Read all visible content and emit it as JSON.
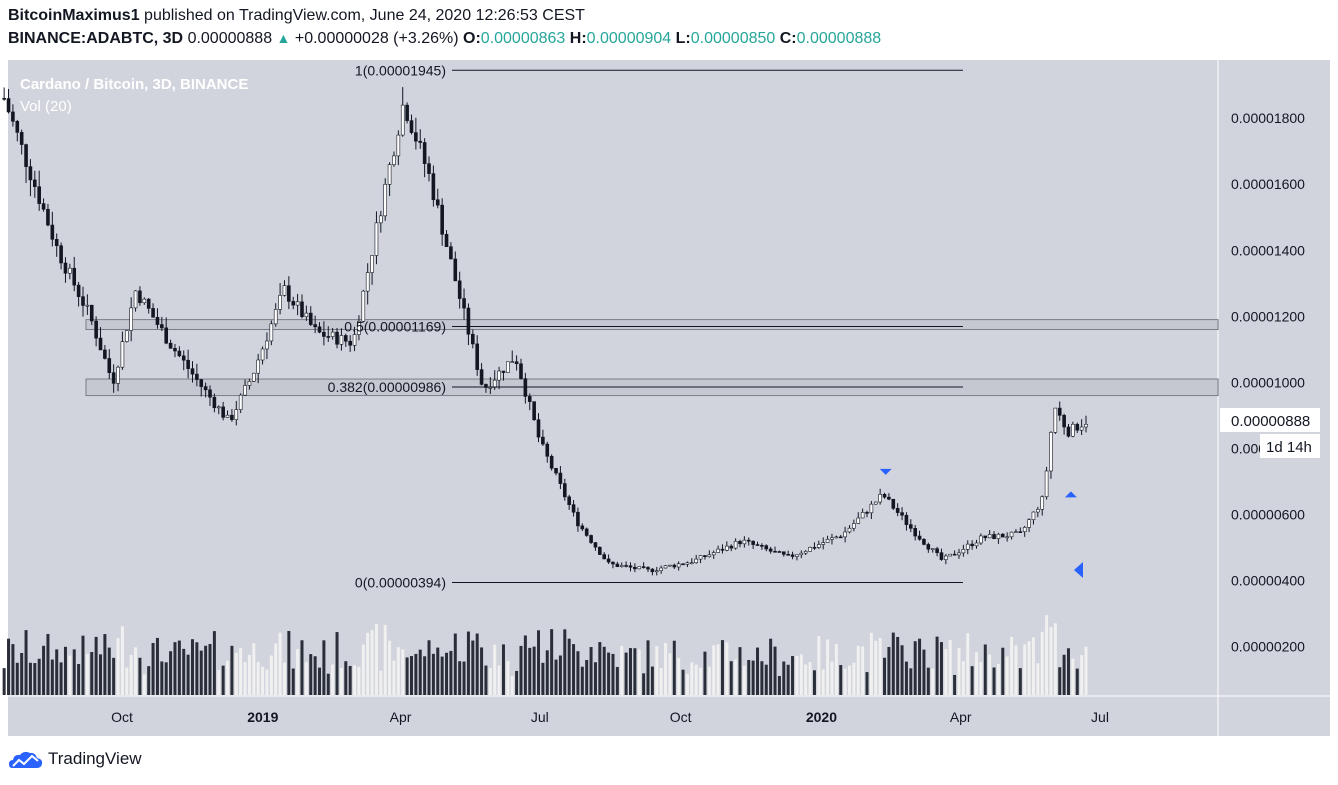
{
  "header": {
    "author": "BitcoinMaximus1",
    "published_text": "published on TradingView.com, June 24, 2020 12:26:53 CEST",
    "symbol": "BINANCE:ADABTC, 3D",
    "last": "0.00000888",
    "change": "+0.00000028 (+3.26%)",
    "o_label": "O:",
    "o_value": "0.00000863",
    "h_label": "H:",
    "h_value": "0.00000904",
    "l_label": "L:",
    "l_value": "0.00000850",
    "c_label": "C:",
    "c_value": "0.00000888"
  },
  "legend": {
    "title": "Cardano / Bitcoin, 3D, BINANCE",
    "volume": "Vol (20)"
  },
  "footer": {
    "brand": "TradingView"
  },
  "chart_data": {
    "type": "candlestick",
    "title": "Cardano / Bitcoin, 3D, BINANCE",
    "y_ticks": [
      "0.00001800",
      "0.00001600",
      "0.00001400",
      "0.00001200",
      "0.00001000",
      "0.00000800",
      "0.00000600",
      "0.00000400",
      "0.00000200"
    ],
    "x_ticks": [
      "Oct",
      "2019",
      "Apr",
      "Jul",
      "Oct",
      "2020",
      "Apr",
      "Jul"
    ],
    "last_price": "0.00000888",
    "countdown": "1d 14h",
    "fib_levels": [
      {
        "label": "1(0.00001945)",
        "value": 1.945e-05
      },
      {
        "label": "0.5(0.00001169)",
        "value": 1.169e-05
      },
      {
        "label": "0.382(0.00000986)",
        "value": 9.86e-06
      },
      {
        "label": "0(0.00000394)",
        "value": 3.94e-06
      }
    ],
    "resistance_zones": [
      [
        9.6e-06,
        1.01e-05
      ],
      [
        1.16e-05,
        1.19e-05
      ]
    ],
    "price_path": [
      {
        "date": "2018-07-16",
        "value": 1.86e-05
      },
      {
        "date": "2018-08-01",
        "value": 1.65e-05
      },
      {
        "date": "2018-08-20",
        "value": 1.4e-05
      },
      {
        "date": "2018-09-10",
        "value": 1.2e-05
      },
      {
        "date": "2018-09-25",
        "value": 1e-05
      },
      {
        "date": "2018-10-10",
        "value": 1.28e-05
      },
      {
        "date": "2018-11-01",
        "value": 1.12e-05
      },
      {
        "date": "2018-11-20",
        "value": 1e-05
      },
      {
        "date": "2018-12-10",
        "value": 8.8e-06
      },
      {
        "date": "2018-12-25",
        "value": 1.02e-05
      },
      {
        "date": "2019-01-15",
        "value": 1.28e-05
      },
      {
        "date": "2019-02-05",
        "value": 1.15e-05
      },
      {
        "date": "2019-03-01",
        "value": 1.12e-05
      },
      {
        "date": "2019-03-20",
        "value": 1.55e-05
      },
      {
        "date": "2019-04-03",
        "value": 1.85e-05
      },
      {
        "date": "2019-04-20",
        "value": 1.62e-05
      },
      {
        "date": "2019-05-10",
        "value": 1.25e-05
      },
      {
        "date": "2019-05-25",
        "value": 9.8e-06
      },
      {
        "date": "2019-06-15",
        "value": 1.08e-05
      },
      {
        "date": "2019-07-01",
        "value": 8.2e-06
      },
      {
        "date": "2019-07-25",
        "value": 5.8e-06
      },
      {
        "date": "2019-08-15",
        "value": 4.5e-06
      },
      {
        "date": "2019-09-10",
        "value": 4.3e-06
      },
      {
        "date": "2019-10-10",
        "value": 4.6e-06
      },
      {
        "date": "2019-11-10",
        "value": 5.2e-06
      },
      {
        "date": "2019-12-10",
        "value": 4.7e-06
      },
      {
        "date": "2020-01-15",
        "value": 5.4e-06
      },
      {
        "date": "2020-02-10",
        "value": 6.6e-06
      },
      {
        "date": "2020-03-01",
        "value": 5.5e-06
      },
      {
        "date": "2020-03-20",
        "value": 4.6e-06
      },
      {
        "date": "2020-04-15",
        "value": 5.3e-06
      },
      {
        "date": "2020-05-10",
        "value": 5.4e-06
      },
      {
        "date": "2020-05-25",
        "value": 6.5e-06
      },
      {
        "date": "2020-06-01",
        "value": 9.3e-06
      },
      {
        "date": "2020-06-10",
        "value": 8.5e-06
      },
      {
        "date": "2020-06-24",
        "value": 8.88e-06
      }
    ],
    "markers": [
      {
        "type": "down-arrow",
        "date": "2020-02-12",
        "value": 7.2e-06
      },
      {
        "type": "up-arrow",
        "date": "2020-06-12",
        "value": 6.7e-06
      }
    ]
  }
}
